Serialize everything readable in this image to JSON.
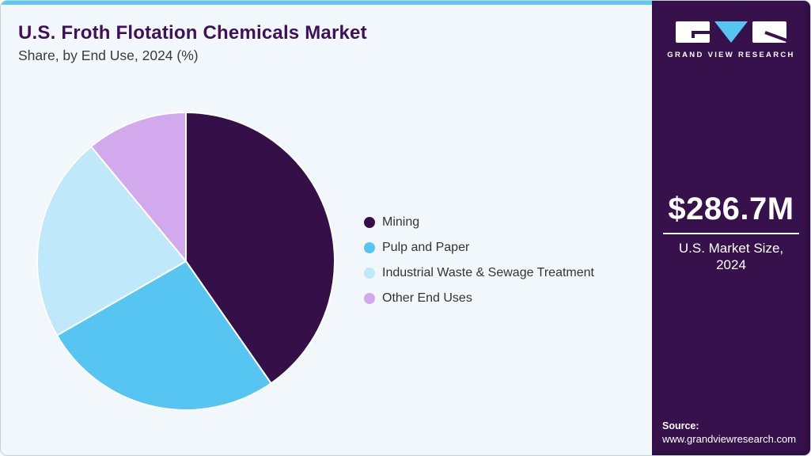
{
  "header": {
    "title": "U.S. Froth Flotation Chemicals Market",
    "subtitle": "Share, by End Use, 2024 (%)"
  },
  "chart_data": {
    "type": "pie",
    "title": "U.S. Froth Flotation Chemicals Market Share, by End Use, 2024 (%)",
    "categories": [
      "Mining",
      "Pulp and Paper",
      "Industrial Waste & Sewage Treatment",
      "Other End Uses"
    ],
    "values": [
      40.3,
      26.4,
      22.3,
      11.0
    ],
    "unit": "%",
    "colors": [
      "#351048",
      "#56c5f2",
      "#bfe8fa",
      "#d3a9ee"
    ],
    "start_angle_deg": 0,
    "direction": "clockwise",
    "legend_position": "right",
    "slice_border_color": "#ffffff"
  },
  "sidebar": {
    "brand": "GRAND VIEW RESEARCH",
    "market_size_value": "$286.7M",
    "market_size_label": "U.S. Market Size, 2024",
    "source_label": "Source:",
    "source_url": "www.grandviewresearch.com",
    "bg_color": "#37114b",
    "accent_color": "#56c5f2"
  },
  "theme": {
    "card_bg": "#f1f7fa",
    "top_strip_color": "#5ecaf2",
    "title_color": "#3f1159",
    "subtitle_color": "#3a3a3a",
    "legend_text_color": "#333333"
  }
}
